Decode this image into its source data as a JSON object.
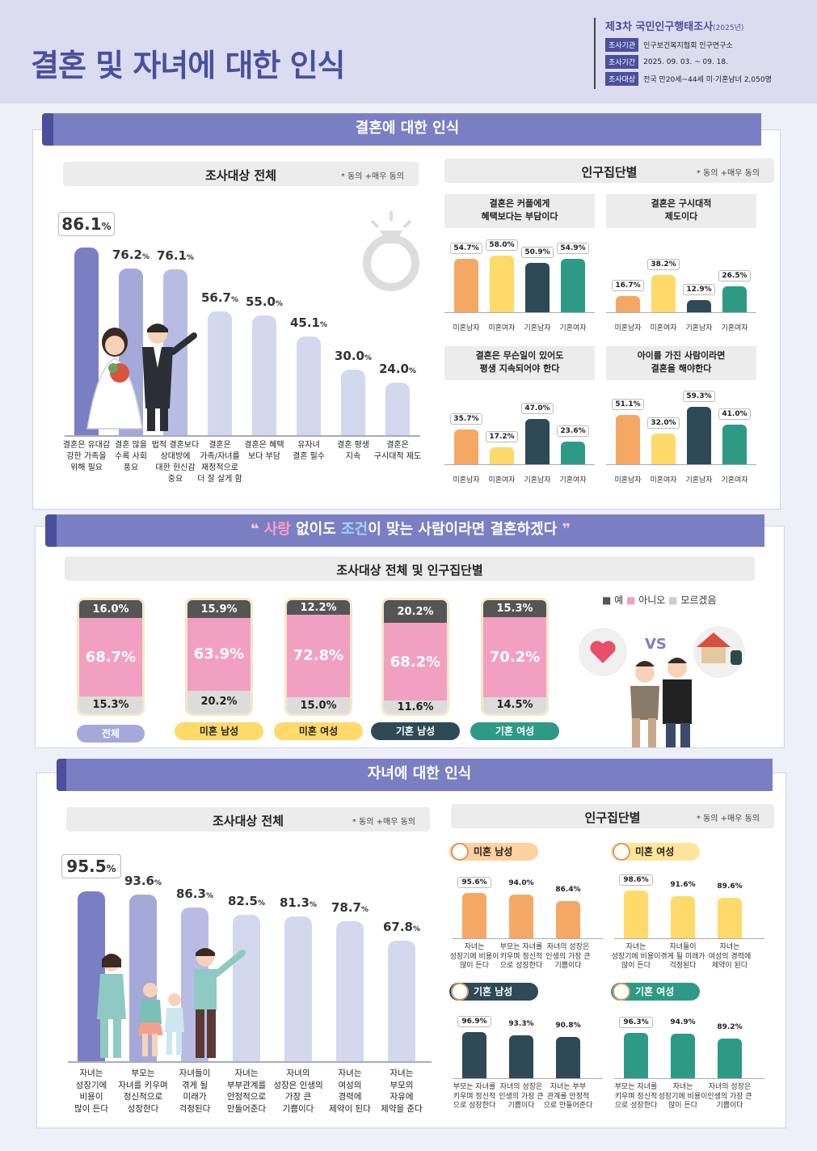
{
  "header": {
    "title": "결혼 및 자녀에 대한 인식",
    "survey_title": "제3차 국민인구행태조사",
    "survey_year": "(2025년)",
    "info": [
      {
        "tag": "조사기관",
        "value": "인구보건복지협회 인구연구소"
      },
      {
        "tag": "조사기간",
        "value": "2025. 09. 03. ~ 09. 18."
      },
      {
        "tag": "조사대상",
        "value": "전국 만20세~44세 미·기혼남녀 2,050명"
      }
    ]
  },
  "section1": {
    "banner": "결혼에 대한 인식",
    "left_header": "조사대상 전체",
    "note": "* 동의 +매우 동의",
    "right_header": "인구집단별"
  },
  "section2": {
    "banner_pre": "사랑",
    "banner_mid1": " 없이도 ",
    "banner_mid2": "조건",
    "banner_post": "이 맞는 사람이라면 결혼하겠다",
    "header": "조사대상 전체 및 인구집단별",
    "legend": {
      "yes": "예",
      "no": "아니오",
      "dk": "모르겠음"
    },
    "vs": "VS"
  },
  "section3": {
    "banner": "자녀에 대한 인식",
    "left_header": "조사대상 전체",
    "note": "* 동의 +매우 동의",
    "right_header": "인구집단별"
  },
  "groups": [
    "미혼남자",
    "미혼여자",
    "기혼남자",
    "기혼여자"
  ],
  "chart_data": [
    {
      "type": "bar",
      "title": "결혼에 대한 인식 - 조사대상 전체",
      "categories": [
        "결혼은 유대감 강한 가족을 위해 필요",
        "결혼 많을수록 사회 풍요",
        "법적 결혼보다 상대방에 대한 헌신감 중요",
        "결혼은 가족/자녀를 재정적으로 더 잘 살게 함",
        "결혼은 혜택보다 부담",
        "유자녀 결혼 필수",
        "결혼 평생 지속",
        "결혼은 구시대적 제도"
      ],
      "label_lines": [
        [
          "결혼은 유대감",
          "강한 가족을",
          "위해 필요"
        ],
        [
          "결혼 많을",
          "수록 사회",
          "풍요"
        ],
        [
          "법적 결혼보다",
          "상대방에",
          "대한 헌신감",
          "중요"
        ],
        [
          "결혼은",
          "가족/자녀를",
          "재정적으로",
          "더 잘 살게 함"
        ],
        [
          "결혼은 혜택",
          "보다 부담"
        ],
        [
          "유자녀",
          "결혼 필수"
        ],
        [
          "결혼 평생",
          "지속"
        ],
        [
          "결혼은",
          "구시대적 제도"
        ]
      ],
      "values": [
        86.1,
        76.2,
        76.1,
        56.7,
        55.0,
        45.1,
        30.0,
        24.0
      ],
      "value_labels": [
        "86.1",
        "76.2",
        "76.1",
        "56.7",
        "55.0",
        "45.1",
        "30.0",
        "24.0"
      ],
      "unit": "%",
      "ylim": [
        0,
        100
      ]
    },
    {
      "type": "bar",
      "title": "인구집단별 결혼 인식",
      "panels": [
        {
          "q": [
            "결혼은 커플에게",
            "혜택보다는 부담이다"
          ],
          "values": [
            54.7,
            58.0,
            50.9,
            54.9
          ],
          "labels": [
            "54.7",
            "58.0",
            "50.9",
            "54.9"
          ]
        },
        {
          "q": [
            "결혼은 구시대적",
            "제도이다"
          ],
          "values": [
            16.7,
            38.2,
            12.9,
            26.5
          ],
          "labels": [
            "16.7",
            "38.2",
            "12.9",
            "26.5"
          ]
        },
        {
          "q": [
            "결혼은 무슨일이 있어도",
            "평생 지속되어야 한다"
          ],
          "values": [
            35.7,
            17.2,
            47.0,
            23.6
          ],
          "labels": [
            "35.7",
            "17.2",
            "47.0",
            "23.6"
          ]
        },
        {
          "q": [
            "아이를 가진 사람이라면",
            "결혼을 해야한다"
          ],
          "values": [
            51.1,
            32.0,
            59.3,
            41.0
          ],
          "labels": [
            "51.1",
            "32.0",
            "59.3",
            "41.0"
          ]
        }
      ]
    },
    {
      "type": "bar",
      "title": "사랑 없이도 조건이 맞는 사람이라면 결혼하겠다",
      "categories": [
        "전체",
        "미혼 남성",
        "미혼 여성",
        "기혼 남성",
        "기혼 여성"
      ],
      "series": [
        {
          "name": "예",
          "values": [
            16.0,
            15.9,
            12.2,
            20.2,
            15.3
          ],
          "labels": [
            "16.0",
            "15.9",
            "12.2",
            "20.2",
            "15.3"
          ]
        },
        {
          "name": "아니오",
          "values": [
            68.7,
            63.9,
            72.8,
            68.2,
            70.2
          ],
          "labels": [
            "68.7",
            "63.9",
            "72.8",
            "68.2",
            "70.2"
          ]
        },
        {
          "name": "모르겠음",
          "values": [
            15.3,
            20.2,
            15.0,
            11.6,
            14.5
          ],
          "labels": [
            "15.3",
            "20.2",
            "15.0",
            "11.6",
            "14.5"
          ]
        }
      ],
      "colors": {
        "yes": "#555555",
        "no": "#f2a0c2",
        "dk": "#dcdcdc"
      }
    },
    {
      "type": "bar",
      "title": "자녀에 대한 인식 - 조사대상 전체",
      "label_lines": [
        [
          "자녀는",
          "성장기에",
          "비용이",
          "많이 든다"
        ],
        [
          "부모는",
          "자녀를 키우며",
          "정신적으로",
          "성장한다"
        ],
        [
          "자녀들이",
          "겪게 될",
          "미래가",
          "걱정된다"
        ],
        [
          "자녀는",
          "부부관계를",
          "안정적으로",
          "만들어준다"
        ],
        [
          "자녀의",
          "성장은 인생의",
          "가장 큰",
          "기쁨이다"
        ],
        [
          "자녀는",
          "여성의",
          "경력에",
          "제약이 된다"
        ],
        [
          "자녀는",
          "부모의",
          "자유에",
          "제약을 준다"
        ]
      ],
      "values": [
        95.5,
        93.6,
        86.3,
        82.5,
        81.3,
        78.7,
        67.8
      ],
      "value_labels": [
        "95.5",
        "93.6",
        "86.3",
        "82.5",
        "81.3",
        "78.7",
        "67.8"
      ],
      "unit": "%",
      "ylim": [
        0,
        100
      ]
    },
    {
      "type": "bar",
      "title": "인구집단별 자녀 인식",
      "panels": [
        {
          "group": "미혼 남성",
          "values": [
            95.6,
            94.0,
            86.4
          ],
          "labels": [
            "95.6",
            "94.0",
            "86.4"
          ],
          "cats": [
            [
              "자녀는",
              "성장기에 비용이",
              "많이 든다"
            ],
            [
              "부모는 자녀를",
              "키우며 정신적",
              "으로 성장한다"
            ],
            [
              "자녀의 성장은",
              "인생의 가장 큰",
              "기쁨이다"
            ]
          ]
        },
        {
          "group": "미혼 여성",
          "values": [
            98.6,
            91.6,
            89.6
          ],
          "labels": [
            "98.6",
            "91.6",
            "89.6"
          ],
          "cats": [
            [
              "자녀는",
              "성장기에 비용이",
              "많이 든다"
            ],
            [
              "자녀들이",
              "겪게 될 미래가",
              "걱정된다"
            ],
            [
              "자녀는",
              "여성의 경력에",
              "제약이 된다"
            ]
          ]
        },
        {
          "group": "기혼 남성",
          "values": [
            96.9,
            93.3,
            90.8
          ],
          "labels": [
            "96.9",
            "93.3",
            "90.8"
          ],
          "cats": [
            [
              "부모는 자녀를",
              "키우며 정신적",
              "으로 성장한다"
            ],
            [
              "자녀의 성장은",
              "인생의 가장 큰",
              "기쁨이다"
            ],
            [
              "자녀는 부부",
              "관계를 안정적",
              "으로 만들어준다"
            ]
          ]
        },
        {
          "group": "기혼 여성",
          "values": [
            96.3,
            94.9,
            89.2
          ],
          "labels": [
            "96.3",
            "94.9",
            "89.2"
          ],
          "cats": [
            [
              "부모는 자녀를",
              "키우며 정신적",
              "으로 성장한다"
            ],
            [
              "자녀는",
              "성장기에 비용이",
              "많이 든다"
            ],
            [
              "자녀의 성장은",
              "인생의 가장 큰",
              "기쁨이다"
            ]
          ]
        }
      ]
    }
  ]
}
